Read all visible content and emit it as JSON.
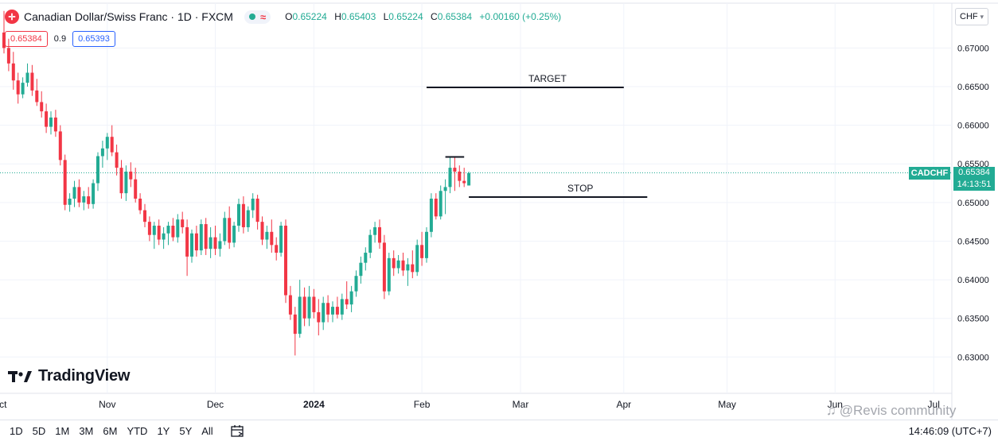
{
  "header": {
    "symbol_title": "Canadian Dollar/Swiss Franc · 1D · FXCM",
    "wave_icon": "wave-icon",
    "ohlc": {
      "o_label": "O",
      "o": "0.65224",
      "h_label": "H",
      "h": "0.65403",
      "l_label": "L",
      "l": "0.65224",
      "c_label": "C",
      "c": "0.65384",
      "change": "+0.00160 (+0.25%)"
    },
    "sell_price": "0.65384",
    "spread": "0.9",
    "buy_price": "0.65393",
    "currency": "CHF"
  },
  "colors": {
    "up": "#22ab94",
    "down": "#f23645",
    "grid": "#f0f3fa",
    "axis_text": "#131722"
  },
  "chart_data": {
    "type": "candlestick",
    "symbol": "CADCHF",
    "last_price": "0.65384",
    "countdown": "14:13:51",
    "y_ticks": [
      "0.67000",
      "0.66500",
      "0.66000",
      "0.65500",
      "0.65000",
      "0.64500",
      "0.64000",
      "0.63500",
      "0.63000"
    ],
    "y_tick_values": [
      0.67,
      0.665,
      0.66,
      0.655,
      0.65,
      0.645,
      0.64,
      0.635,
      0.63
    ],
    "ylim": [
      0.6253,
      0.6758
    ],
    "x_ticks": [
      {
        "label": "Oct",
        "index": -1
      },
      {
        "label": "Nov",
        "index": 22
      },
      {
        "label": "Dec",
        "index": 45
      },
      {
        "label": "2024",
        "index": 66
      },
      {
        "label": "Feb",
        "index": 89
      },
      {
        "label": "Mar",
        "index": 110
      },
      {
        "label": "Apr",
        "index": 132
      },
      {
        "label": "May",
        "index": 154
      },
      {
        "label": "Jun",
        "index": 177
      },
      {
        "label": "Jul",
        "index": 198
      }
    ],
    "candles": [
      [
        0.672,
        0.6748,
        0.6693,
        0.67
      ],
      [
        0.67,
        0.6712,
        0.667,
        0.668
      ],
      [
        0.668,
        0.6695,
        0.6646,
        0.6658
      ],
      [
        0.6658,
        0.6668,
        0.6628,
        0.664
      ],
      [
        0.664,
        0.6662,
        0.6635,
        0.6655
      ],
      [
        0.6655,
        0.668,
        0.665,
        0.6668
      ],
      [
        0.6668,
        0.6678,
        0.6638,
        0.6645
      ],
      [
        0.6645,
        0.666,
        0.6625,
        0.663
      ],
      [
        0.663,
        0.6644,
        0.661,
        0.6618
      ],
      [
        0.6618,
        0.6628,
        0.659,
        0.6598
      ],
      [
        0.6598,
        0.6618,
        0.6588,
        0.661
      ],
      [
        0.661,
        0.662,
        0.6585,
        0.6592
      ],
      [
        0.6592,
        0.66,
        0.6548,
        0.6555
      ],
      [
        0.6555,
        0.6562,
        0.649,
        0.6497
      ],
      [
        0.6497,
        0.6512,
        0.6488,
        0.6505
      ],
      [
        0.6505,
        0.6528,
        0.6494,
        0.652
      ],
      [
        0.652,
        0.653,
        0.6494,
        0.65
      ],
      [
        0.65,
        0.6515,
        0.649,
        0.6508
      ],
      [
        0.6508,
        0.652,
        0.6492,
        0.6498
      ],
      [
        0.6498,
        0.653,
        0.6492,
        0.6525
      ],
      [
        0.6525,
        0.6565,
        0.6515,
        0.656
      ],
      [
        0.656,
        0.658,
        0.6545,
        0.657
      ],
      [
        0.657,
        0.659,
        0.6555,
        0.6585
      ],
      [
        0.6585,
        0.66,
        0.656,
        0.6565
      ],
      [
        0.6565,
        0.6575,
        0.6535,
        0.6545
      ],
      [
        0.6545,
        0.6555,
        0.6505,
        0.6512
      ],
      [
        0.6512,
        0.6548,
        0.6502,
        0.654
      ],
      [
        0.654,
        0.6552,
        0.652,
        0.653
      ],
      [
        0.653,
        0.6545,
        0.65,
        0.6505
      ],
      [
        0.6505,
        0.6512,
        0.6485,
        0.649
      ],
      [
        0.649,
        0.6498,
        0.6468,
        0.6475
      ],
      [
        0.6475,
        0.6482,
        0.645,
        0.6458
      ],
      [
        0.6458,
        0.6475,
        0.644,
        0.647
      ],
      [
        0.647,
        0.6478,
        0.6445,
        0.6452
      ],
      [
        0.6452,
        0.6468,
        0.644,
        0.646
      ],
      [
        0.646,
        0.6475,
        0.6445,
        0.647
      ],
      [
        0.647,
        0.648,
        0.645,
        0.6455
      ],
      [
        0.6455,
        0.6485,
        0.6448,
        0.6478
      ],
      [
        0.6478,
        0.6488,
        0.646,
        0.6468
      ],
      [
        0.6468,
        0.6478,
        0.6405,
        0.643
      ],
      [
        0.643,
        0.6465,
        0.6422,
        0.646
      ],
      [
        0.646,
        0.647,
        0.643,
        0.6438
      ],
      [
        0.6438,
        0.6478,
        0.6432,
        0.6472
      ],
      [
        0.6472,
        0.648,
        0.6432,
        0.644
      ],
      [
        0.644,
        0.6468,
        0.6428,
        0.6455
      ],
      [
        0.6455,
        0.647,
        0.6432,
        0.644
      ],
      [
        0.644,
        0.646,
        0.643,
        0.645
      ],
      [
        0.645,
        0.6488,
        0.6445,
        0.648
      ],
      [
        0.648,
        0.6495,
        0.644,
        0.6448
      ],
      [
        0.6448,
        0.6475,
        0.6442,
        0.647
      ],
      [
        0.647,
        0.6505,
        0.6462,
        0.6498
      ],
      [
        0.6498,
        0.6508,
        0.646,
        0.6468
      ],
      [
        0.6468,
        0.6495,
        0.6462,
        0.649
      ],
      [
        0.649,
        0.6512,
        0.648,
        0.6505
      ],
      [
        0.6505,
        0.651,
        0.6465,
        0.6475
      ],
      [
        0.6475,
        0.6482,
        0.6445,
        0.6452
      ],
      [
        0.6452,
        0.647,
        0.644,
        0.6462
      ],
      [
        0.6462,
        0.6478,
        0.6435,
        0.6445
      ],
      [
        0.6445,
        0.6455,
        0.6425,
        0.6435
      ],
      [
        0.6435,
        0.6475,
        0.643,
        0.647
      ],
      [
        0.647,
        0.6478,
        0.637,
        0.638
      ],
      [
        0.638,
        0.6392,
        0.6348,
        0.6355
      ],
      [
        0.6355,
        0.6365,
        0.6302,
        0.633
      ],
      [
        0.633,
        0.64,
        0.6325,
        0.6378
      ],
      [
        0.6378,
        0.639,
        0.634,
        0.635
      ],
      [
        0.635,
        0.6392,
        0.634,
        0.6378
      ],
      [
        0.6378,
        0.6388,
        0.635,
        0.6358
      ],
      [
        0.6358,
        0.6375,
        0.6328,
        0.6345
      ],
      [
        0.6345,
        0.6378,
        0.6335,
        0.637
      ],
      [
        0.637,
        0.638,
        0.6345,
        0.6355
      ],
      [
        0.6355,
        0.6372,
        0.6345,
        0.6365
      ],
      [
        0.6365,
        0.6378,
        0.635,
        0.6355
      ],
      [
        0.6355,
        0.6382,
        0.6348,
        0.6375
      ],
      [
        0.6375,
        0.6398,
        0.6362,
        0.6368
      ],
      [
        0.6368,
        0.6392,
        0.6358,
        0.6385
      ],
      [
        0.6385,
        0.6412,
        0.6378,
        0.6405
      ],
      [
        0.6405,
        0.643,
        0.6395,
        0.6422
      ],
      [
        0.6422,
        0.6442,
        0.6412,
        0.6435
      ],
      [
        0.6435,
        0.6465,
        0.6428,
        0.6458
      ],
      [
        0.6458,
        0.6475,
        0.6448,
        0.6468
      ],
      [
        0.6468,
        0.6478,
        0.644,
        0.6448
      ],
      [
        0.6448,
        0.6458,
        0.6375,
        0.6385
      ],
      [
        0.6385,
        0.6435,
        0.638,
        0.6428
      ],
      [
        0.6428,
        0.6438,
        0.6405,
        0.6415
      ],
      [
        0.6415,
        0.6432,
        0.6408,
        0.6425
      ],
      [
        0.6425,
        0.6435,
        0.6405,
        0.6412
      ],
      [
        0.6412,
        0.6428,
        0.6392,
        0.642
      ],
      [
        0.642,
        0.6438,
        0.6402,
        0.641
      ],
      [
        0.641,
        0.6452,
        0.6405,
        0.6445
      ],
      [
        0.6445,
        0.6462,
        0.6418,
        0.6428
      ],
      [
        0.6428,
        0.6468,
        0.6422,
        0.6462
      ],
      [
        0.6462,
        0.6512,
        0.6455,
        0.6505
      ],
      [
        0.6505,
        0.6512,
        0.6478,
        0.6482
      ],
      [
        0.6482,
        0.6522,
        0.6478,
        0.6515
      ],
      [
        0.6515,
        0.653,
        0.6485,
        0.652
      ],
      [
        0.652,
        0.656,
        0.6512,
        0.6545
      ],
      [
        0.6545,
        0.656,
        0.6515,
        0.654
      ],
      [
        0.654,
        0.6548,
        0.652,
        0.6528
      ],
      [
        0.6528,
        0.6545,
        0.652,
        0.6525
      ],
      [
        0.6522,
        0.654,
        0.6522,
        0.6538
      ]
    ],
    "annotations": [
      {
        "label": "TARGET",
        "price": 0.6649,
        "x_start_index": 90,
        "x_end_index": 132
      },
      {
        "label": "STOP",
        "price": 0.6507,
        "x_start_index": 99,
        "x_end_index": 137
      },
      {
        "label": "",
        "price": 0.6559,
        "x_start_index": 94,
        "x_end_index": 98
      }
    ],
    "grid": true
  },
  "branding": {
    "logo_text": "TradingView",
    "watermark": "@Revis community"
  },
  "bottom_bar": {
    "timeframes": [
      "1D",
      "5D",
      "1M",
      "3M",
      "6M",
      "YTD",
      "1Y",
      "5Y",
      "All"
    ],
    "clock": "14:46:09 (UTC+7)"
  }
}
